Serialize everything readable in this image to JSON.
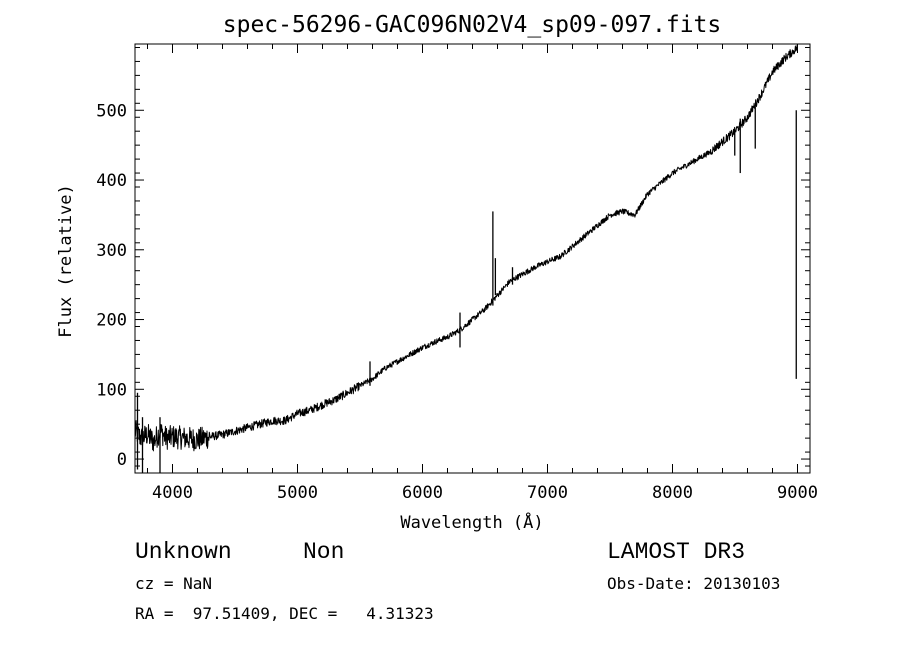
{
  "chart_data": {
    "type": "line",
    "title": "spec-56296-GAC096N02V4_sp09-097.fits",
    "xlabel": "Wavelength (Å)",
    "ylabel": "Flux (relative)",
    "xlim": [
      3700,
      9100
    ],
    "ylim": [
      -20,
      595
    ],
    "xticks": [
      4000,
      5000,
      6000,
      7000,
      8000,
      9000
    ],
    "yticks": [
      0,
      100,
      200,
      300,
      400,
      500
    ],
    "xtick_labels": [
      "4000",
      "5000",
      "6000",
      "7000",
      "8000",
      "9000"
    ],
    "ytick_labels": [
      "0",
      "100",
      "200",
      "300",
      "400",
      "500"
    ],
    "series": [
      {
        "name": "spectrum",
        "x": [
          3700,
          3750,
          3800,
          3850,
          3900,
          3950,
          4000,
          4100,
          4200,
          4300,
          4400,
          4500,
          4600,
          4700,
          4800,
          4900,
          5000,
          5100,
          5200,
          5300,
          5400,
          5500,
          5600,
          5700,
          5800,
          5900,
          6000,
          6100,
          6200,
          6300,
          6400,
          6500,
          6550,
          6600,
          6700,
          6800,
          6900,
          7000,
          7100,
          7200,
          7300,
          7400,
          7500,
          7600,
          7700,
          7750,
          7800,
          7900,
          8000,
          8100,
          8200,
          8300,
          8400,
          8500,
          8600,
          8700,
          8800,
          8900,
          9000
        ],
        "y": [
          40,
          30,
          35,
          25,
          40,
          30,
          32,
          30,
          28,
          32,
          35,
          40,
          45,
          50,
          55,
          55,
          65,
          70,
          78,
          85,
          95,
          105,
          115,
          130,
          140,
          150,
          160,
          168,
          175,
          185,
          200,
          215,
          225,
          235,
          255,
          265,
          275,
          283,
          290,
          305,
          320,
          335,
          350,
          355,
          350,
          365,
          380,
          395,
          410,
          420,
          430,
          440,
          455,
          470,
          490,
          520,
          555,
          575,
          590
        ]
      }
    ],
    "features": [
      {
        "x": 3720,
        "y_from": -15,
        "y_to": 95
      },
      {
        "x": 3760,
        "y_from": -20,
        "y_to": 60
      },
      {
        "x": 3900,
        "y_from": -20,
        "y_to": 60
      },
      {
        "x": 5580,
        "y_from": 105,
        "y_to": 140
      },
      {
        "x": 6300,
        "y_from": 160,
        "y_to": 210
      },
      {
        "x": 6563,
        "y_from": 220,
        "y_to": 355
      },
      {
        "x": 6583,
        "y_from": 235,
        "y_to": 288
      },
      {
        "x": 6720,
        "y_from": 250,
        "y_to": 275
      },
      {
        "x": 8498,
        "y_from": 435,
        "y_to": 470
      },
      {
        "x": 8542,
        "y_from": 410,
        "y_to": 488
      },
      {
        "x": 8662,
        "y_from": 445,
        "y_to": 505
      },
      {
        "x": 8990,
        "y_from": 115,
        "y_to": 500
      }
    ],
    "grid": false
  },
  "labels": {
    "object_class": "Unknown",
    "object_subclass": "Non",
    "survey": "LAMOST DR3",
    "redshift": "cz = NaN",
    "obs_date": "Obs-Date: 20130103",
    "coords": "RA =  97.51409, DEC =   4.31323"
  }
}
